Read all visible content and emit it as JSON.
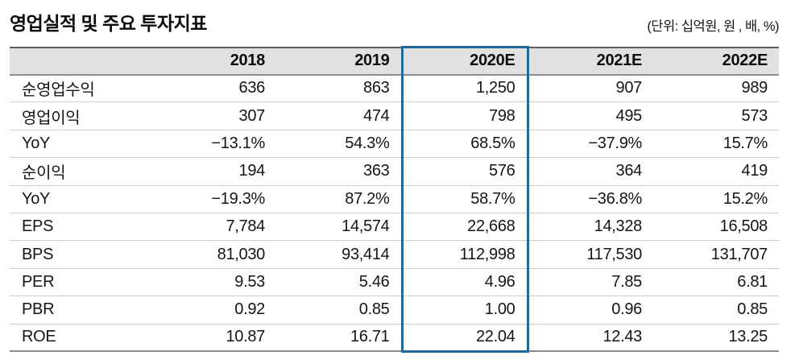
{
  "header": {
    "title": "영업실적 및 주요 투자지표",
    "unit": "(단위: 십억원, 원 , 배, %)"
  },
  "table": {
    "columns": [
      "",
      "2018",
      "2019",
      "2020E",
      "2021E",
      "2022E"
    ],
    "highlight_column": "2020E",
    "rows": [
      {
        "label": "순영업수익",
        "values": [
          "636",
          "863",
          "1,250",
          "907",
          "989"
        ]
      },
      {
        "label": "영업이익",
        "values": [
          "307",
          "474",
          "798",
          "495",
          "573"
        ]
      },
      {
        "label": "YoY",
        "values": [
          "−13.1%",
          "54.3%",
          "68.5%",
          "−37.9%",
          "15.7%"
        ]
      },
      {
        "label": "순이익",
        "values": [
          "194",
          "363",
          "576",
          "364",
          "419"
        ]
      },
      {
        "label": "YoY",
        "values": [
          "−19.3%",
          "87.2%",
          "58.7%",
          "−36.8%",
          "15.2%"
        ]
      },
      {
        "label": "EPS",
        "values": [
          "7,784",
          "14,574",
          "22,668",
          "14,328",
          "16,508"
        ]
      },
      {
        "label": "BPS",
        "values": [
          "81,030",
          "93,414",
          "112,998",
          "117,530",
          "131,707"
        ]
      },
      {
        "label": "PER",
        "values": [
          "9.53",
          "5.46",
          "4.96",
          "7.85",
          "6.81"
        ]
      },
      {
        "label": "PBR",
        "values": [
          "0.92",
          "0.85",
          "1.00",
          "0.96",
          "0.85"
        ]
      },
      {
        "label": "ROE",
        "values": [
          "10.87",
          "16.71",
          "22.04",
          "12.43",
          "13.25"
        ]
      }
    ]
  },
  "colors": {
    "accent_blue": "#23699a",
    "header_bg": "#e1e1e1"
  }
}
